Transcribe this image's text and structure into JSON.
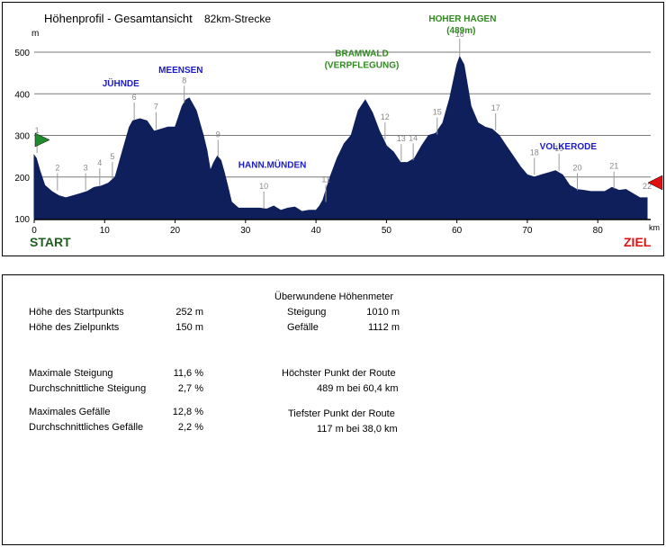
{
  "chart_data": {
    "type": "area",
    "title": "Höhenprofil - Gesamtansicht",
    "subtitle": "82km-Strecke",
    "ylabel": "m",
    "xlabel": "km",
    "xlim": [
      0,
      87
    ],
    "ylim": [
      100,
      500
    ],
    "xticks": [
      0,
      10,
      20,
      30,
      40,
      50,
      60,
      70,
      80
    ],
    "yticks": [
      100,
      200,
      300,
      400,
      500
    ],
    "grid": "horizontal",
    "fill_color": "#0f1f5c",
    "start_label": "START",
    "end_label": "ZIEL",
    "series": [
      {
        "x": [
          0,
          0.3,
          0.8,
          1.5,
          2.5,
          3.5,
          4.5,
          5.5,
          6.5,
          7.5,
          8.5,
          9.5,
          10.5,
          11.5,
          12.5,
          13.5,
          14,
          15,
          16,
          17,
          18,
          19,
          20,
          21,
          21.5,
          22,
          23,
          24,
          24.5,
          25,
          25.5,
          26,
          26.5,
          27,
          27.5,
          28,
          29,
          30,
          32,
          33,
          34,
          35,
          36,
          37,
          38,
          39,
          40,
          40.5,
          41,
          42,
          43,
          44,
          45,
          46,
          47,
          48,
          49,
          50,
          51,
          52,
          53,
          54,
          55,
          56,
          57,
          58,
          59,
          60,
          60.4,
          61,
          62,
          63,
          64,
          65,
          66,
          67,
          68,
          69,
          70,
          71,
          72,
          73,
          74,
          75,
          76,
          77,
          78,
          79,
          80,
          81,
          82,
          83,
          84,
          85,
          86,
          87
        ],
        "y": [
          252,
          245,
          215,
          180,
          165,
          155,
          150,
          155,
          160,
          165,
          175,
          178,
          185,
          200,
          260,
          320,
          335,
          340,
          335,
          310,
          315,
          320,
          320,
          370,
          385,
          390,
          360,
          300,
          265,
          215,
          235,
          250,
          240,
          210,
          175,
          140,
          125,
          125,
          125,
          123,
          130,
          120,
          125,
          128,
          117,
          120,
          120,
          130,
          145,
          200,
          245,
          280,
          300,
          360,
          385,
          355,
          310,
          275,
          260,
          235,
          235,
          245,
          275,
          300,
          305,
          330,
          390,
          470,
          489,
          470,
          370,
          330,
          320,
          315,
          300,
          275,
          250,
          225,
          205,
          200,
          205,
          210,
          215,
          205,
          180,
          170,
          168,
          165,
          165,
          165,
          175,
          168,
          170,
          160,
          150,
          150
        ]
      }
    ],
    "waypoints": [
      {
        "label": "1",
        "x": 0.4,
        "y": 258
      },
      {
        "label": "2",
        "x": 3.3,
        "y": 168
      },
      {
        "label": "3",
        "x": 7.3,
        "y": 168
      },
      {
        "label": "4",
        "x": 9.3,
        "y": 180
      },
      {
        "label": "5",
        "x": 11.1,
        "y": 195
      },
      {
        "label": "6",
        "x": 14.2,
        "y": 338
      },
      {
        "label": "7",
        "x": 17.3,
        "y": 315
      },
      {
        "label": "8",
        "x": 21.3,
        "y": 378
      },
      {
        "label": "9",
        "x": 26.1,
        "y": 248
      },
      {
        "label": "10",
        "x": 32.6,
        "y": 124
      },
      {
        "label": "11",
        "x": 41.4,
        "y": 140
      },
      {
        "label": "12",
        "x": 49.8,
        "y": 290
      },
      {
        "label": "13",
        "x": 52.1,
        "y": 238
      },
      {
        "label": "14",
        "x": 53.8,
        "y": 240
      },
      {
        "label": "15",
        "x": 57.2,
        "y": 302
      },
      {
        "label": "16",
        "x": 60.4,
        "y": 489
      },
      {
        "label": "17",
        "x": 65.5,
        "y": 312
      },
      {
        "label": "18",
        "x": 71.0,
        "y": 205
      },
      {
        "label": "19",
        "x": 74.5,
        "y": 215
      },
      {
        "label": "20",
        "x": 77.1,
        "y": 168
      },
      {
        "label": "21",
        "x": 82.3,
        "y": 172
      },
      {
        "label": "22",
        "x": 87.0,
        "y": 150
      }
    ],
    "places": [
      {
        "name": "JÜHNDE",
        "x": 12.3,
        "y": 418,
        "color": "#1a1acc"
      },
      {
        "name": "MEENSEN",
        "x": 20.8,
        "y": 450,
        "color": "#1a1acc"
      },
      {
        "name": "HANN.MÜNDEN",
        "x": 33.8,
        "y": 222,
        "color": "#1a1acc"
      },
      {
        "name": "BRAMWALD",
        "x": 46.5,
        "y": 490,
        "color": "#2f8a1f"
      },
      {
        "name": "(VERPFLEGUNG)",
        "x": 46.5,
        "y": 462,
        "color": "#2f8a1f"
      },
      {
        "name": "HOHER HAGEN",
        "x": 60.8,
        "y": 573,
        "color": "#2f8a1f"
      },
      {
        "name": "(489m)",
        "x": 60.6,
        "y": 545,
        "color": "#2f8a1f"
      },
      {
        "name": "VOLKERODE",
        "x": 75.8,
        "y": 267,
        "color": "#1a1acc"
      }
    ]
  },
  "stats": {
    "start_height_label": "Höhe des Startpunkts",
    "start_height_value": "252 m",
    "end_height_label": "Höhe des Zielpunkts",
    "end_height_value": "150 m",
    "max_climb_label": "Maximale Steigung",
    "max_climb_value": "11,6 %",
    "avg_climb_label": "Durchschnittliche Steigung",
    "avg_climb_value": "2,7 %",
    "max_descent_label": "Maximales Gefälle",
    "max_descent_value": "12,8 %",
    "avg_descent_label": "Durchschnittliches Gefälle",
    "avg_descent_value": "2,2 %",
    "elev_header": "Überwundene Höhenmeter",
    "climb_label": "Steigung",
    "climb_value": "1010 m",
    "descent_label": "Gefälle",
    "descent_value": "1112 m",
    "highest_label": "Höchster Punkt der Route",
    "highest_value": "489 m bei 60,4 km",
    "lowest_label": "Tiefster Punkt der Route",
    "lowest_value": "117 m bei 38,0 km"
  }
}
